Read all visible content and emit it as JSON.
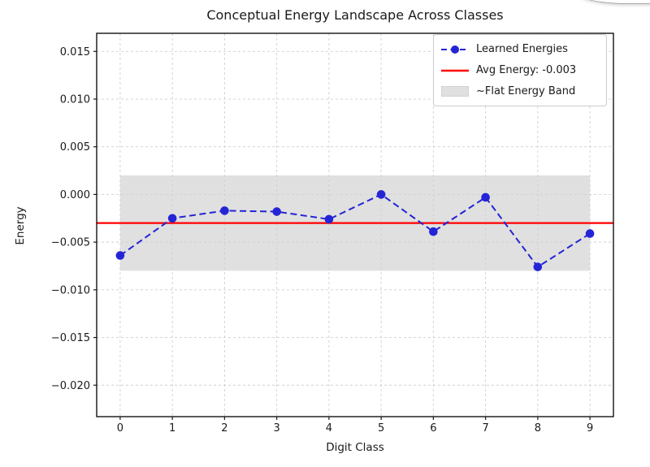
{
  "figure": {
    "title": "Conceptual Energy Landscape Across Classes",
    "xlabel": "Digit Class",
    "ylabel": "Energy"
  },
  "legend": {
    "position": "upper right",
    "items": [
      {
        "label": "Learned Energies",
        "marker": "blue-dashed-line-with-circle",
        "color": "#2424d6"
      },
      {
        "label": "Avg Energy: -0.003",
        "marker": "red-solid-line",
        "color": "#ff0000"
      },
      {
        "label": "~Flat Energy Band",
        "marker": "gray-patch",
        "color": "#e0e0e0"
      }
    ]
  },
  "chart_data": {
    "type": "line",
    "title": "Conceptual Energy Landscape Across Classes",
    "xlabel": "Digit Class",
    "ylabel": "Energy",
    "x": [
      0,
      1,
      2,
      3,
      4,
      5,
      6,
      7,
      8,
      9
    ],
    "series": [
      {
        "name": "Learned Energies",
        "values": [
          -0.0064,
          -0.0025,
          -0.0017,
          -0.0018,
          -0.0026,
          0.0,
          -0.0039,
          -0.0003,
          -0.0076,
          -0.0041
        ],
        "color": "#2424d6",
        "linestyle": "dashed",
        "marker": "circle"
      }
    ],
    "avg_line": {
      "value": -0.003,
      "label": "Avg Energy: -0.003",
      "color": "#ff0000"
    },
    "band": {
      "xmin": 0,
      "xmax": 9,
      "ymin": -0.008,
      "ymax": 0.002,
      "label": "~Flat Energy Band",
      "color": "#e0e0e0"
    },
    "xticks": [
      0,
      1,
      2,
      3,
      4,
      5,
      6,
      7,
      8,
      9
    ],
    "yticks": [
      0.015,
      0.01,
      0.005,
      0.0,
      -0.005,
      -0.01,
      -0.015,
      -0.02
    ],
    "xlim": [
      -0.45,
      9.45
    ],
    "ylim": [
      -0.0233,
      0.0169
    ],
    "grid": true,
    "legend_position": "upper right"
  }
}
